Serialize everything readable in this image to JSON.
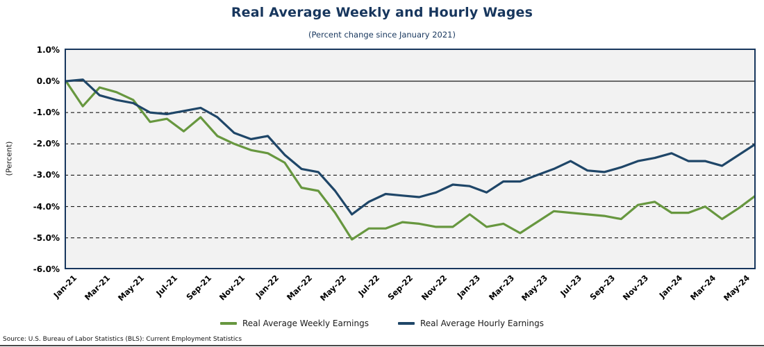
{
  "chart_data": {
    "type": "line",
    "title": "Real Average Weekly and Hourly Wages",
    "subtitle": "(Percent change since January 2021)",
    "xlabel": "",
    "ylabel": "(Percent)",
    "source_note": "Source: U.S. Bureau of Labor Statistics (BLS): Current Employment Statistics",
    "ylim": [
      -6.0,
      1.0
    ],
    "y_tick_labels": [
      "1.0%",
      "0.0%",
      "-1.0%",
      "-2.0%",
      "-3.0%",
      "-4.0%",
      "-5.0%",
      "-6.0%"
    ],
    "y_tick_values": [
      1,
      0,
      -1,
      -2,
      -3,
      -4,
      -5,
      -6
    ],
    "gridline_values": [
      -1,
      -2,
      -3,
      -4,
      -5
    ],
    "zero_line": true,
    "grid": "horizontal-dashed",
    "legend_position": "bottom-center",
    "x_tick_every": 2,
    "categories": [
      "Jan-21",
      "Feb-21",
      "Mar-21",
      "Apr-21",
      "May-21",
      "Jun-21",
      "Jul-21",
      "Aug-21",
      "Sep-21",
      "Oct-21",
      "Nov-21",
      "Dec-21",
      "Jan-22",
      "Feb-22",
      "Mar-22",
      "Apr-22",
      "May-22",
      "Jun-22",
      "Jul-22",
      "Aug-22",
      "Sep-22",
      "Oct-22",
      "Nov-22",
      "Dec-22",
      "Jan-23",
      "Feb-23",
      "Mar-23",
      "Apr-23",
      "May-23",
      "Jun-23",
      "Jul-23",
      "Aug-23",
      "Sep-23",
      "Oct-23",
      "Nov-23",
      "Dec-23",
      "Jan-24",
      "Feb-24",
      "Mar-24",
      "Apr-24",
      "May-24",
      "Jun-24"
    ],
    "series": [
      {
        "name": "Real Average Weekly Earnings",
        "color": "#67973f",
        "values": [
          0,
          -0.8,
          -0.2,
          -0.35,
          -0.6,
          -1.3,
          -1.2,
          -1.6,
          -1.15,
          -1.75,
          -2.0,
          -2.2,
          -2.3,
          -2.6,
          -3.4,
          -3.5,
          -4.2,
          -5.05,
          -4.7,
          -4.7,
          -4.5,
          -4.55,
          -4.65,
          -4.65,
          -4.25,
          -4.65,
          -4.55,
          -4.85,
          -4.5,
          -4.15,
          -4.2,
          -4.25,
          -4.3,
          -4.4,
          -3.95,
          -3.85,
          -4.2,
          -4.2,
          -4.0,
          -4.4,
          -4.05,
          -3.65
        ]
      },
      {
        "name": "Real Average Hourly Earnings",
        "color": "#1f4668",
        "values": [
          0,
          0.05,
          -0.45,
          -0.6,
          -0.7,
          -1.0,
          -1.05,
          -0.95,
          -0.85,
          -1.15,
          -1.65,
          -1.85,
          -1.75,
          -2.35,
          -2.8,
          -2.9,
          -3.5,
          -4.25,
          -3.85,
          -3.6,
          -3.65,
          -3.7,
          -3.55,
          -3.3,
          -3.35,
          -3.55,
          -3.2,
          -3.2,
          -3.0,
          -2.8,
          -2.55,
          -2.85,
          -2.9,
          -2.75,
          -2.55,
          -2.45,
          -2.3,
          -2.55,
          -2.55,
          -2.7,
          -2.35,
          -2.0
        ]
      }
    ],
    "colors": {
      "title": "#17365d",
      "plot_background": "#f2f2f2",
      "plot_border": "#17365d",
      "gridline": "#1a1a1a"
    }
  }
}
